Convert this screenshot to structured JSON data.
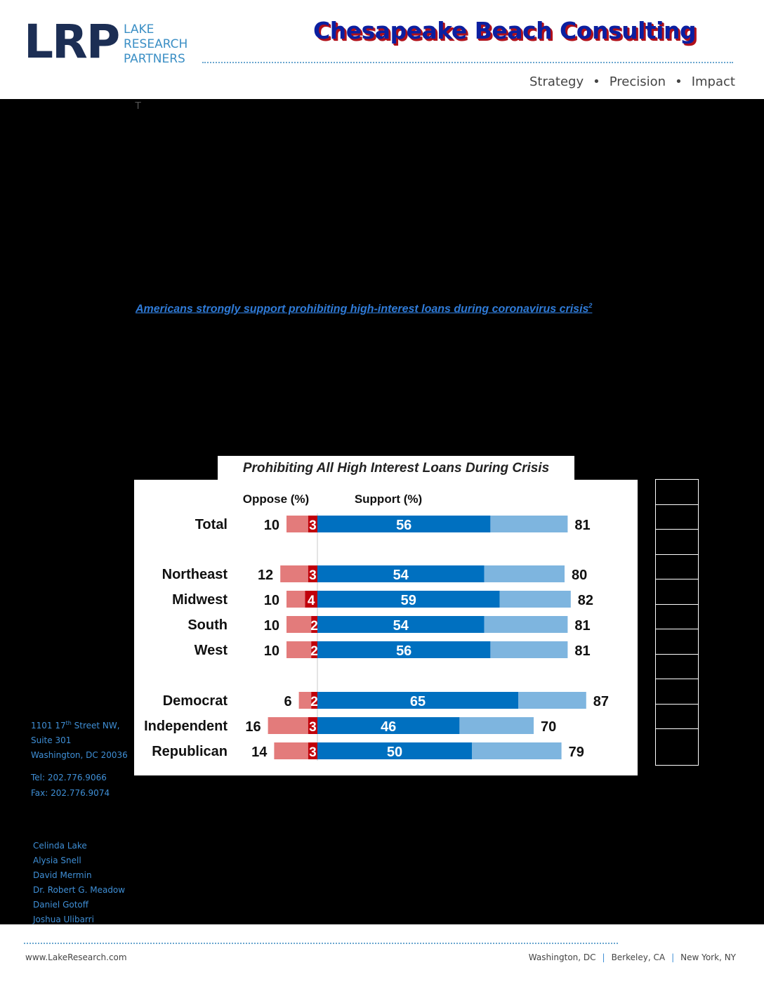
{
  "header": {
    "logo_abbr": "LRP",
    "logo_line1": "LAKE",
    "logo_line2": "RESEARCH",
    "logo_line3": "PARTNERS",
    "partner_name": "Chesapeake Beach Consulting",
    "tagline_1": "Strategy",
    "tagline_2": "Precision",
    "tagline_3": "Impact",
    "tagline_sep": "•"
  },
  "body": {
    "stray_char": "T",
    "link_text": "Americans strongly support prohibiting high-interest loans during coronavirus crisis",
    "link_sup": "2"
  },
  "sidebar": {
    "address_1a": "1101 17",
    "address_1sup": "th",
    "address_1b": " Street NW,",
    "address_2": "Suite 301",
    "address_3": "Washington, DC 20036",
    "tel": "Tel: 202.776.9066",
    "fax": "Fax: 202.776.9074",
    "staff": [
      "Celinda Lake",
      "Alysia Snell",
      "David Mermin",
      "Dr. Robert G. Meadow",
      "Daniel Gotoff",
      "Joshua Ulibarri"
    ]
  },
  "footer": {
    "url": "www.LakeResearch.com",
    "city_1": "Washington, DC",
    "city_2": "Berkeley, CA",
    "city_3": "New York, NY",
    "city_sep": "|"
  },
  "chart_data": {
    "type": "bar",
    "title": "Prohibiting All High Interest Loans During Crisis",
    "oppose_header": "Oppose (%)",
    "support_header": "Support (%)",
    "categories": [
      "Total",
      "Northeast",
      "Midwest",
      "South",
      "West",
      "Democrat",
      "Independent",
      "Republican"
    ],
    "series": [
      {
        "name": "Total Oppose",
        "values": [
          10,
          12,
          10,
          10,
          10,
          6,
          16,
          14
        ]
      },
      {
        "name": "Strongly Oppose",
        "values": [
          3,
          3,
          4,
          2,
          2,
          2,
          3,
          3
        ]
      },
      {
        "name": "Strongly Support",
        "values": [
          56,
          54,
          59,
          54,
          56,
          65,
          46,
          50
        ]
      },
      {
        "name": "Total Support",
        "values": [
          81,
          80,
          82,
          81,
          81,
          87,
          70,
          79
        ]
      }
    ],
    "colors": {
      "oppose_light": "#e37b7b",
      "oppose_strong": "#c0000b",
      "support_strong": "#0070c0",
      "support_light": "#7eb5df"
    }
  }
}
